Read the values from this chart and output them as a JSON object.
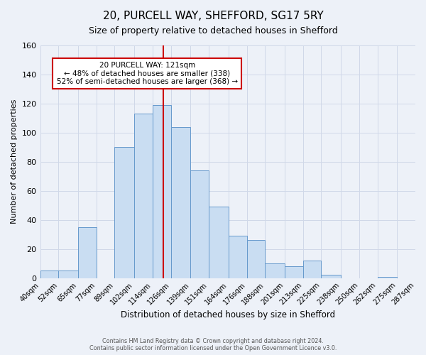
{
  "title": "20, PURCELL WAY, SHEFFORD, SG17 5RY",
  "subtitle": "Size of property relative to detached houses in Shefford",
  "xlabel": "Distribution of detached houses by size in Shefford",
  "ylabel": "Number of detached properties",
  "bar_heights": [
    5,
    5,
    35,
    0,
    90,
    113,
    119,
    104,
    74,
    49,
    29,
    26,
    10,
    8,
    12,
    2,
    0,
    0,
    1,
    0
  ],
  "bin_edges": [
    40,
    52,
    65,
    77,
    89,
    102,
    114,
    126,
    139,
    151,
    164,
    176,
    188,
    201,
    213,
    225,
    238,
    250,
    262,
    275,
    287
  ],
  "tick_labels": [
    "40sqm",
    "52sqm",
    "65sqm",
    "77sqm",
    "89sqm",
    "102sqm",
    "114sqm",
    "126sqm",
    "139sqm",
    "151sqm",
    "164sqm",
    "176sqm",
    "188sqm",
    "201sqm",
    "213sqm",
    "225sqm",
    "238sqm",
    "250sqm",
    "262sqm",
    "275sqm",
    "287sqm"
  ],
  "bar_color": "#c9ddf2",
  "bar_edge_color": "#6699cc",
  "grid_color": "#d0d8e8",
  "bg_color": "#edf1f8",
  "property_value": 121,
  "property_line_color": "#cc0000",
  "annotation_line1": "20 PURCELL WAY: 121sqm",
  "annotation_line2": "← 48% of detached houses are smaller (338)",
  "annotation_line3": "52% of semi-detached houses are larger (368) →",
  "annotation_box_color": "#ffffff",
  "annotation_box_edge": "#cc0000",
  "ylim": [
    0,
    160
  ],
  "yticks": [
    0,
    20,
    40,
    60,
    80,
    100,
    120,
    140,
    160
  ],
  "footnote": "Contains HM Land Registry data © Crown copyright and database right 2024.\nContains public sector information licensed under the Open Government Licence v3.0."
}
